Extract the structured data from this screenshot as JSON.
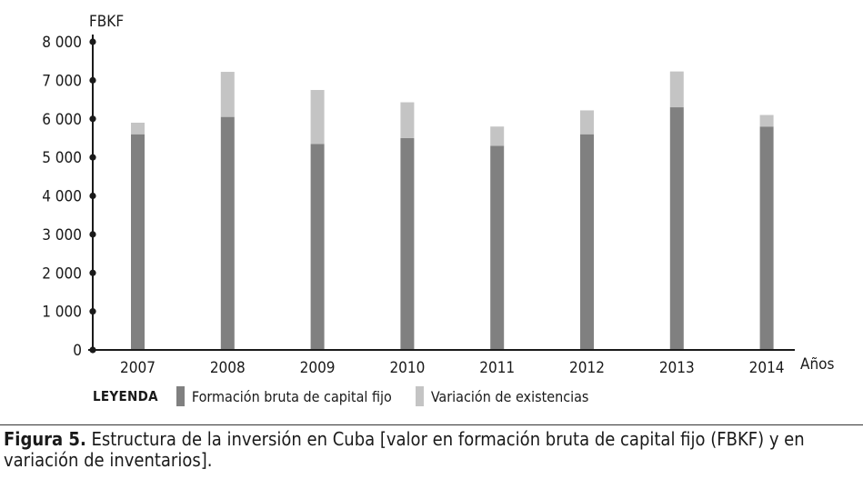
{
  "chart_data": {
    "type": "bar",
    "stacked": true,
    "ylabel": "FBKF",
    "xlabel": "Años",
    "ylim": [
      0,
      8000
    ],
    "yticks": [
      "0",
      "1 000",
      "2 000",
      "3 000",
      "4 000",
      "5 000",
      "6 000",
      "7 000",
      "8 000"
    ],
    "categories": [
      "2007",
      "2008",
      "2009",
      "2010",
      "2011",
      "2012",
      "2013",
      "2014"
    ],
    "series": [
      {
        "name": "Formación bruta de capital fijo",
        "color": "#808080",
        "values": [
          5600,
          6050,
          5350,
          5500,
          5300,
          5600,
          6300,
          5800
        ]
      },
      {
        "name": "Variación de existencias",
        "color": "#c4c4c4",
        "values": [
          300,
          1170,
          1400,
          930,
          500,
          620,
          930,
          300
        ]
      }
    ],
    "grid": false
  },
  "legend": {
    "title": "LEYENDA"
  },
  "caption": {
    "label": "Figura 5.",
    "text": " Estructura de la inversión en Cuba [valor en formación bruta de capital fijo (FBKF) y en variación de inventarios]."
  }
}
